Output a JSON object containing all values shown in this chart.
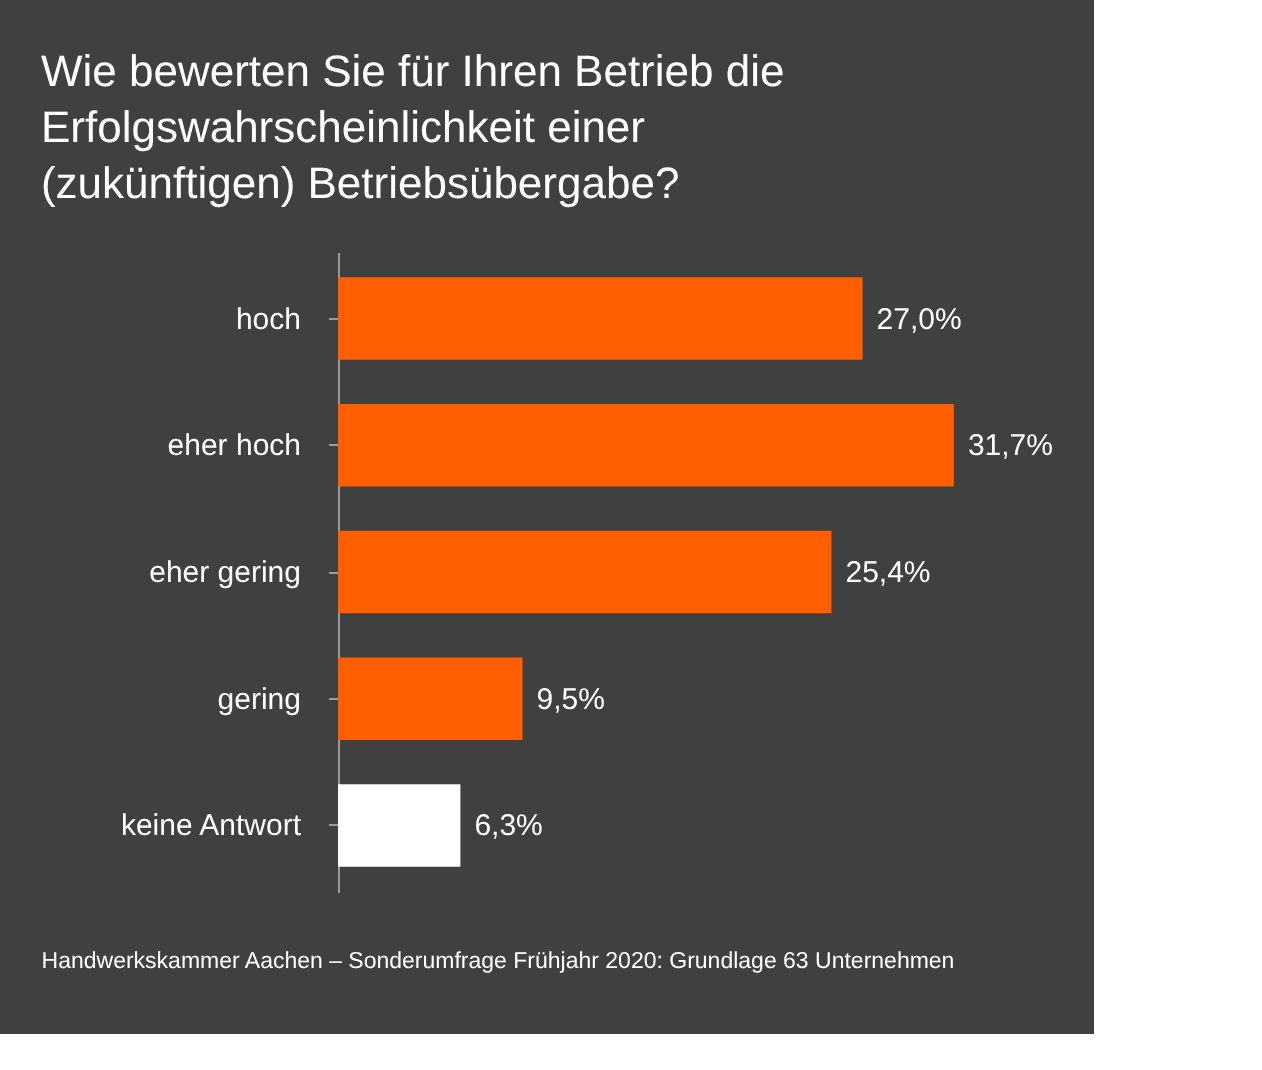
{
  "chart_data": {
    "type": "bar",
    "orientation": "horizontal",
    "title": [
      "Wie bewerten Sie für Ihren Betrieb die",
      "Erfolgswahrscheinlichkeit einer",
      "(zukünftigen) Betriebsübergabe?"
    ],
    "categories": [
      "hoch",
      "eher hoch",
      "eher gering",
      "gering",
      "keine Antwort"
    ],
    "values": [
      27.0,
      31.7,
      25.4,
      9.5,
      6.3
    ],
    "colors": [
      "#ff5f00",
      "#ff5f00",
      "#ff5f00",
      "#ff5f00",
      "#ffffff"
    ],
    "value_labels": [
      "27,0%",
      "31,7%",
      "25,4%",
      "9,5%",
      "6,3%"
    ],
    "annotations": [
      "Handwerkskammer Aachen – Sonderumfrage Frühjahr 2020: Grundlage 63 Unternehmen"
    ],
    "grid": false
  }
}
